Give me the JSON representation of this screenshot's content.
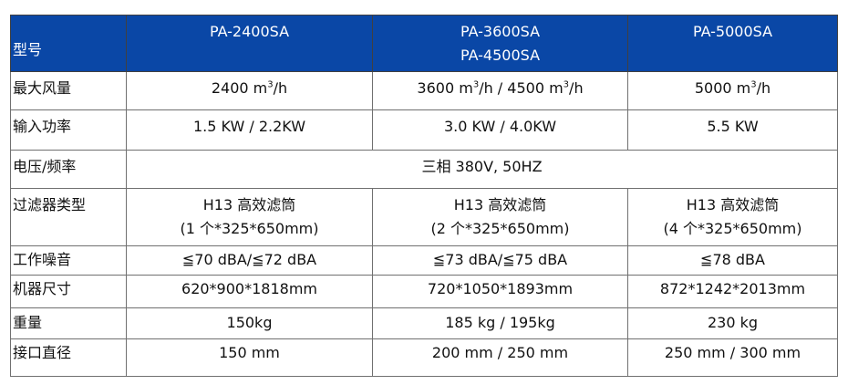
{
  "header": {
    "label": "型号",
    "models": [
      "PA-2400SA",
      [
        "PA-3600SA",
        "PA-4500SA"
      ],
      "PA-5000SA"
    ],
    "color": "#0A47A6"
  },
  "rows": {
    "airflow": {
      "label": "最大风量",
      "values": [
        [
          "2400 m",
          "3",
          "/h"
        ],
        [
          "3600 m",
          "3",
          "/h / 4500 m",
          "3",
          "/h"
        ],
        [
          "5000 m",
          "3",
          "/h"
        ]
      ]
    },
    "power": {
      "label": "输入功率",
      "values": [
        "1.5 KW / 2.2KW",
        "3.0 KW / 4.0KW",
        "5.5 KW"
      ]
    },
    "voltage": {
      "label": "电压/频率",
      "value": "三相 380V, 50HZ"
    },
    "filter": {
      "label": "过滤器类型",
      "values": [
        [
          "H13 高效滤筒",
          "(1 个*325*650mm)"
        ],
        [
          "H13 高效滤筒",
          "(2 个*325*650mm)"
        ],
        [
          "H13 高效滤筒",
          "(4 个*325*650mm)"
        ]
      ]
    },
    "noise": {
      "label": "工作噪音",
      "values": [
        "≦70 dBA/≦72 dBA",
        "≦73 dBA/≦75 dBA",
        "≦78 dBA"
      ]
    },
    "size": {
      "label": "机器尺寸",
      "values": [
        "620*900*1818mm",
        "720*1050*1893mm",
        "872*1242*2013mm"
      ]
    },
    "weight": {
      "label": "重量",
      "values": [
        "150kg",
        "185 kg / 195kg",
        "230 kg"
      ]
    },
    "port": {
      "label": "接口直径",
      "values": [
        "150 mm",
        "200 mm / 250 mm",
        "250 mm / 300 mm"
      ]
    }
  }
}
